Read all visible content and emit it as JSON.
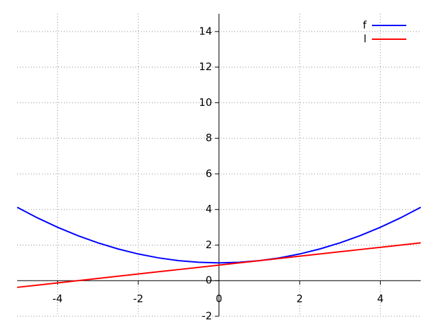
{
  "chart_data": {
    "type": "line",
    "x": [
      -5,
      -4.5,
      -4,
      -3.5,
      -3,
      -2.5,
      -2,
      -1.5,
      -1,
      -0.5,
      0,
      0.5,
      1,
      1.5,
      2,
      2.5,
      3,
      3.5,
      4,
      4.5,
      5
    ],
    "series": [
      {
        "name": "f",
        "color": "#0000ff",
        "values": [
          4.125,
          3.53125,
          3,
          2.53125,
          2.125,
          1.78125,
          1.5,
          1.28125,
          1.125,
          1.03125,
          1,
          1.03125,
          1.125,
          1.28125,
          1.5,
          1.78125,
          2.125,
          2.53125,
          3,
          3.53125,
          4.125
        ]
      },
      {
        "name": "l",
        "color": "#ff0000",
        "values": [
          -0.375,
          -0.25,
          -0.125,
          0,
          0.125,
          0.25,
          0.375,
          0.5,
          0.625,
          0.75,
          0.875,
          1,
          1.125,
          1.25,
          1.375,
          1.5,
          1.625,
          1.75,
          1.875,
          2,
          2.125
        ]
      }
    ],
    "xlim": [
      -5,
      5
    ],
    "ylim": [
      -2,
      15
    ],
    "xticks": [
      -4,
      -2,
      0,
      2,
      4
    ],
    "yticks": [
      -2,
      0,
      2,
      4,
      6,
      8,
      10,
      12,
      14
    ],
    "grid": true,
    "legend": "top-right"
  }
}
